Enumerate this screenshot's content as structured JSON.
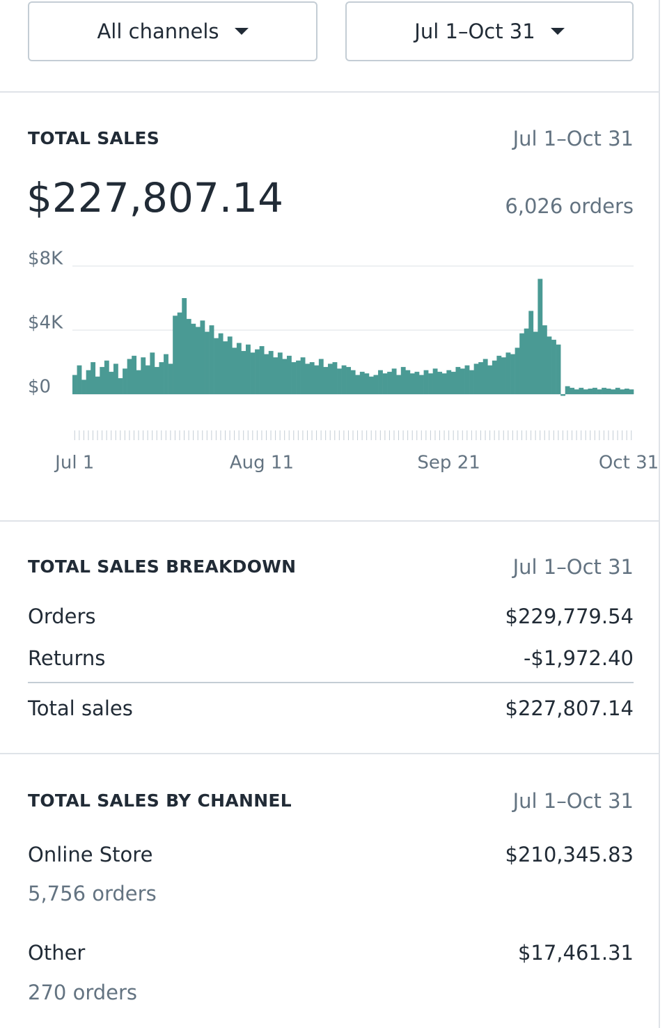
{
  "filters": {
    "channel": "All channels",
    "date_range": "Jul 1–Oct 31"
  },
  "total_sales": {
    "title": "TOTAL SALES",
    "date_range": "Jul 1–Oct 31",
    "amount": "$227,807.14",
    "orders": "6,026 orders",
    "chart": {
      "type": "bar",
      "color": "#4a9a94",
      "categories": [
        "Jul 1",
        null,
        null,
        null,
        null,
        null,
        null,
        null,
        null,
        null,
        null,
        null,
        null,
        null,
        null,
        null,
        null,
        null,
        null,
        null,
        null,
        null,
        null,
        null,
        null,
        null,
        null,
        null,
        null,
        null,
        null,
        null,
        null,
        null,
        null,
        null,
        null,
        null,
        null,
        null,
        null,
        "Aug 11",
        null,
        null,
        null,
        null,
        null,
        null,
        null,
        null,
        null,
        null,
        null,
        null,
        null,
        null,
        null,
        null,
        null,
        null,
        null,
        null,
        null,
        null,
        null,
        null,
        null,
        null,
        null,
        null,
        null,
        null,
        null,
        null,
        null,
        null,
        null,
        null,
        null,
        null,
        null,
        null,
        "Sep 21",
        null,
        null,
        null,
        null,
        null,
        null,
        null,
        null,
        null,
        null,
        null,
        null,
        null,
        null,
        null,
        null,
        null,
        null,
        null,
        null,
        null,
        null,
        null,
        null,
        null,
        null,
        null,
        null,
        null,
        null,
        null,
        null,
        null,
        null,
        null,
        null,
        null,
        null,
        null,
        "Oct 31"
      ],
      "values": [
        1200,
        1800,
        900,
        1500,
        2000,
        1100,
        1700,
        2100,
        1400,
        1900,
        1000,
        1600,
        2200,
        2400,
        1500,
        2300,
        1800,
        2600,
        1700,
        2000,
        2500,
        1900,
        4900,
        5100,
        6000,
        4700,
        4400,
        4200,
        4600,
        3900,
        4300,
        3500,
        3800,
        3300,
        3600,
        2900,
        3200,
        2700,
        3100,
        2600,
        2800,
        3000,
        2500,
        2700,
        2300,
        2600,
        2200,
        2400,
        2000,
        2100,
        2300,
        1900,
        2000,
        1800,
        2200,
        1700,
        1900,
        2000,
        1600,
        1800,
        1700,
        1500,
        1200,
        1400,
        1300,
        1100,
        1200,
        1500,
        1300,
        1400,
        1600,
        1200,
        1700,
        1500,
        1300,
        1400,
        1200,
        1500,
        1300,
        1600,
        1400,
        1300,
        1500,
        1400,
        1700,
        1600,
        1800,
        1500,
        1900,
        2000,
        2200,
        1800,
        2100,
        2400,
        2300,
        2600,
        2500,
        2900,
        3800,
        4100,
        5200,
        3900,
        7200,
        4300,
        3600,
        3400,
        3100,
        -100,
        500,
        400,
        300,
        400,
        300,
        350,
        400,
        300,
        400,
        350,
        300,
        400,
        300,
        350,
        300
      ],
      "ylim": [
        0,
        8000
      ],
      "yticks": [
        {
          "value": 0,
          "label": "$0"
        },
        {
          "value": 4000,
          "label": "$4K"
        },
        {
          "value": 8000,
          "label": "$8K"
        }
      ],
      "grid": true
    }
  },
  "breakdown": {
    "title": "TOTAL SALES BREAKDOWN",
    "date_range": "Jul 1–Oct 31",
    "rows": [
      {
        "label": "Orders",
        "value": "$229,779.54"
      },
      {
        "label": "Returns",
        "value": "-$1,972.40"
      },
      {
        "label": "Total sales",
        "value": "$227,807.14"
      }
    ]
  },
  "by_channel": {
    "title": "TOTAL SALES BY CHANNEL",
    "date_range": "Jul 1–Oct 31",
    "rows": [
      {
        "name": "Online Store",
        "value": "$210,345.83",
        "orders": "5,756 orders"
      },
      {
        "name": "Other",
        "value": "$17,461.31",
        "orders": "270 orders"
      }
    ]
  }
}
